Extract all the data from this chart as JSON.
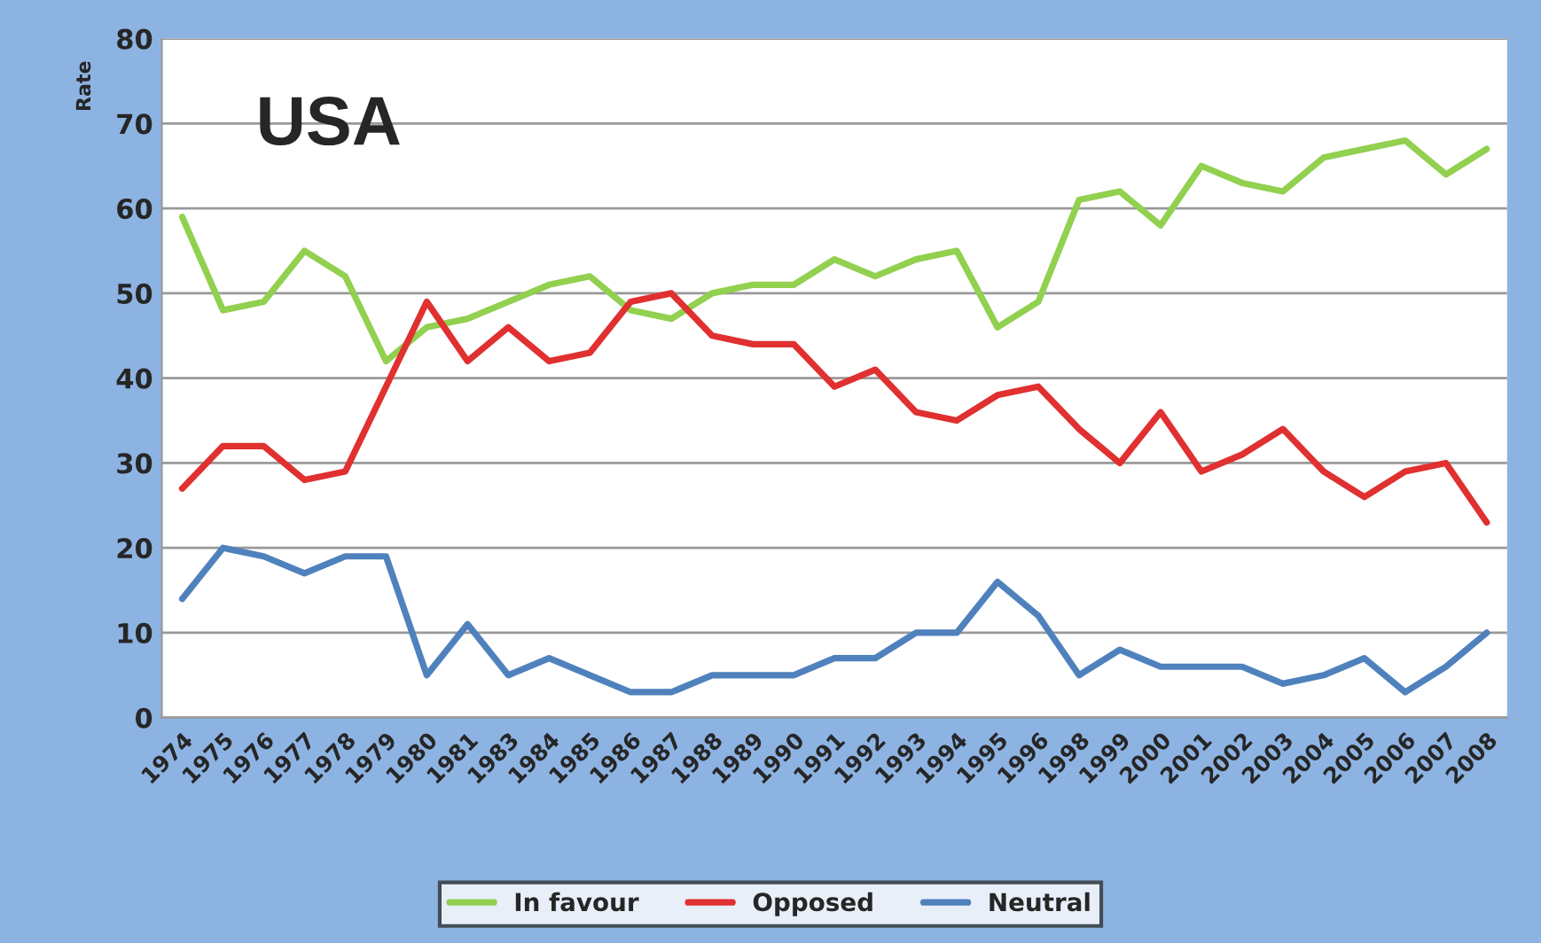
{
  "chart_data": {
    "type": "line",
    "title": "USA",
    "ylabel": "Rate",
    "categories": [
      "1974",
      "1975",
      "1976",
      "1977",
      "1978",
      "1979",
      "1980",
      "1981",
      "1983",
      "1984",
      "1985",
      "1986",
      "1987",
      "1988",
      "1989",
      "1990",
      "1991",
      "1992",
      "1993",
      "1994",
      "1995",
      "1996",
      "1998",
      "1999",
      "2000",
      "2001",
      "2002",
      "2003",
      "2004",
      "2005",
      "2006",
      "2007",
      "2008"
    ],
    "series": [
      {
        "name": "In favour",
        "color": "#92d050",
        "values": [
          59,
          48,
          49,
          55,
          52,
          42,
          46,
          47,
          49,
          51,
          52,
          48,
          47,
          50,
          51,
          51,
          54,
          52,
          54,
          55,
          46,
          49,
          61,
          62,
          58,
          65,
          63,
          62,
          66,
          67,
          68,
          64,
          67
        ]
      },
      {
        "name": "Opposed",
        "color": "#e03030",
        "values": [
          27,
          32,
          32,
          28,
          29,
          39,
          49,
          42,
          46,
          42,
          43,
          49,
          50,
          45,
          44,
          44,
          39,
          41,
          36,
          35,
          38,
          39,
          34,
          30,
          36,
          29,
          31,
          34,
          29,
          26,
          29,
          30,
          23
        ]
      },
      {
        "name": "Neutral",
        "color": "#4f81bd",
        "values": [
          14,
          20,
          19,
          17,
          19,
          19,
          5,
          11,
          5,
          7,
          5,
          3,
          3,
          5,
          5,
          5,
          7,
          7,
          10,
          10,
          16,
          12,
          5,
          8,
          6,
          6,
          6,
          4,
          5,
          7,
          3,
          6,
          10
        ]
      }
    ],
    "ylim": [
      0,
      80
    ],
    "yticks": [
      0,
      10,
      20,
      30,
      40,
      50,
      60,
      70,
      80
    ],
    "grid": "y",
    "legend": "bottom",
    "marker": "none",
    "line_style": "solid"
  }
}
